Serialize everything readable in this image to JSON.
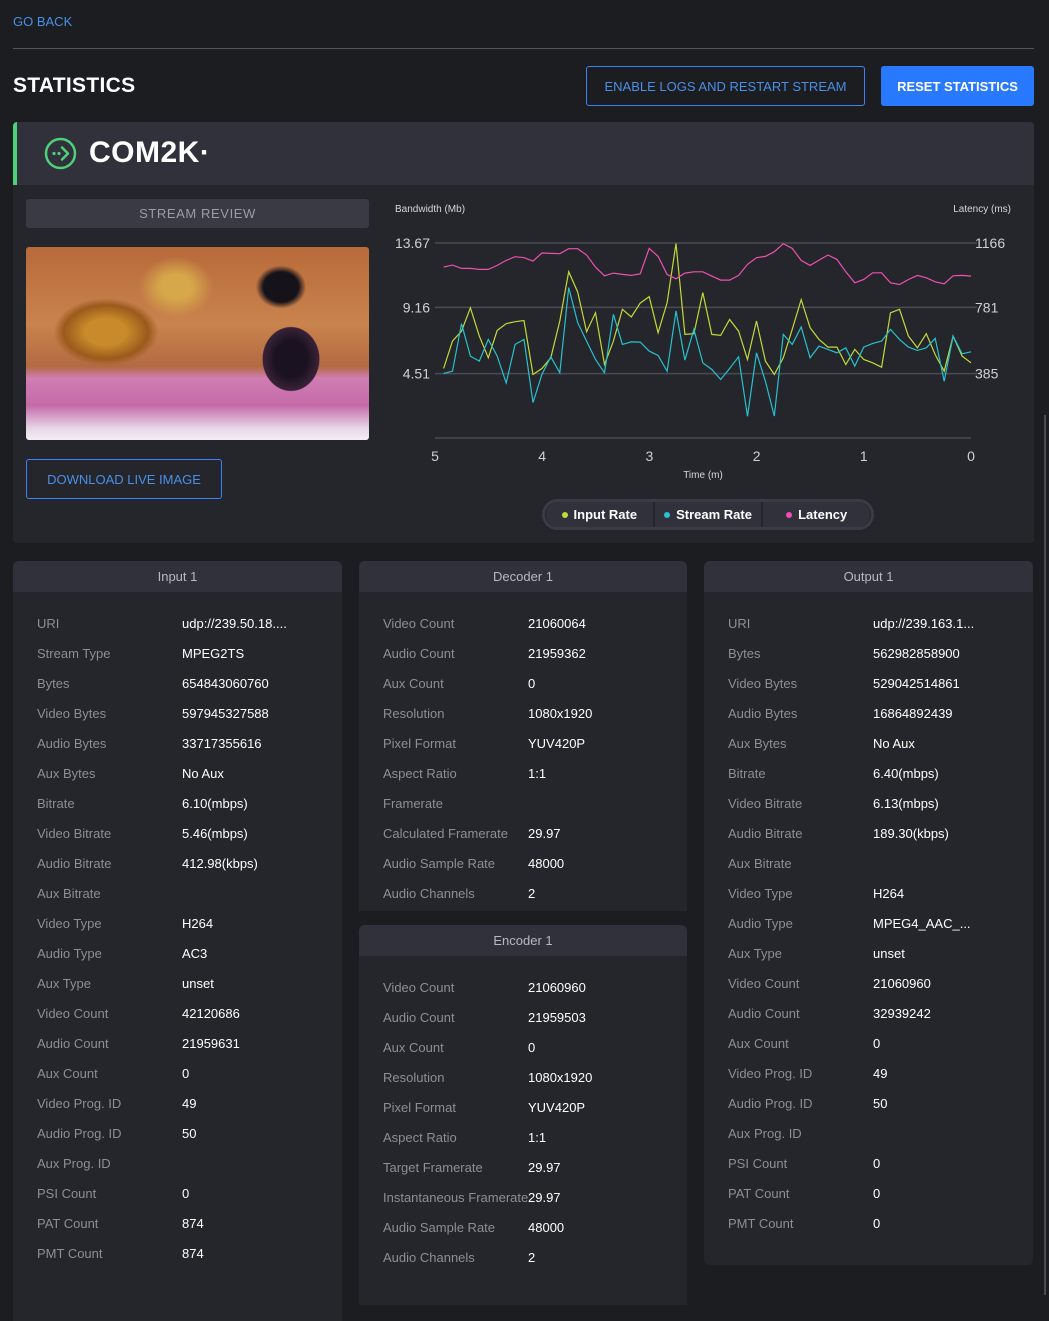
{
  "nav": {
    "go_back": "GO BACK"
  },
  "header": {
    "title": "STATISTICS",
    "enable_logs": "ENABLE LOGS AND RESTART STREAM",
    "reset": "RESET STATISTICS"
  },
  "stream": {
    "name": "COM2K·",
    "accent": "#4ed07a",
    "stream_review": "STREAM REVIEW",
    "download": "DOWNLOAD LIVE IMAGE"
  },
  "chart_data": {
    "type": "line",
    "ylabel_left": "Bandwidth (Mb)",
    "ylabel_right": "Latency (ms)",
    "xlabel": "Time (m)",
    "x_ticks": [
      "5",
      "4",
      "3",
      "2",
      "1",
      "0"
    ],
    "xlim": [
      5,
      0
    ],
    "y_left_ticks": [
      "13.67",
      "9.16",
      "4.51"
    ],
    "ylim_left": [
      0,
      13.67
    ],
    "y_right_ticks": [
      "1166",
      "781",
      "385"
    ],
    "ylim_right": [
      0,
      1166
    ],
    "grid": true,
    "legend_placement": "bottom",
    "series": [
      {
        "name": "Input Rate",
        "axis": "left",
        "color": "#c3d93a",
        "values": [
          4.87,
          6.79,
          7.49,
          9.13,
          7.14,
          5.62,
          7.54,
          8.01,
          8.15,
          8.24,
          4.45,
          4.87,
          5.62,
          8.2,
          11.66,
          10.23,
          7.45,
          8.78,
          5.15,
          6.79,
          9.02,
          8.48,
          9.46,
          9.91,
          7.38,
          9.48,
          13.63,
          7.26,
          7.31,
          10.19,
          7.26,
          7.19,
          8.31,
          7.49,
          5.5,
          8.2,
          5.39,
          4.45,
          5.62,
          7.61,
          9.7,
          7.73,
          6.91,
          6.37,
          6.37,
          5.15,
          6.21,
          5.5,
          5.27,
          4.96,
          8.78,
          9.02,
          7.14,
          6.32,
          7.31,
          5.85,
          4.68,
          7.14,
          5.74,
          5.27
        ]
      },
      {
        "name": "Stream Rate",
        "axis": "left",
        "color": "#27c1cf",
        "values": [
          4.52,
          4.68,
          8.01,
          5.74,
          5.39,
          6.91,
          5.74,
          3.86,
          6.56,
          6.91,
          2.48,
          4.45,
          5.69,
          4.57,
          10.54,
          8.08,
          6.79,
          5.5,
          4.57,
          8.67,
          6.56,
          6.74,
          6.72,
          6.09,
          5.78,
          4.68,
          8.9,
          5.46,
          7.61,
          5.27,
          4.8,
          4.1,
          4.87,
          5.69,
          1.52,
          5.97,
          3.98,
          1.54,
          7.26,
          6.56,
          7.78,
          5.62,
          6.44,
          6.21,
          5.97,
          6.32,
          5.04,
          6.37,
          6.63,
          6.79,
          7.61,
          6.91,
          6.37,
          6.14,
          6.32,
          6.98,
          3.98,
          7.14,
          5.9,
          6.04
        ]
      },
      {
        "name": "Latency",
        "axis": "right",
        "color": "#ee4fb2",
        "values": [
          1022,
          1034,
          1014,
          1014,
          1008,
          1008,
          1032,
          1062,
          1084,
          1078,
          1058,
          1106,
          1104,
          1102,
          1132,
          1132,
          1094,
          1022,
          970,
          986,
          978,
          972,
          982,
          1134,
          1086,
          978,
          952,
          986,
          994,
          994,
          968,
          944,
          944,
          972,
          1038,
          1078,
          1086,
          1114,
          1162,
          1134,
          1062,
          1032,
          1064,
          1094,
          1068,
          994,
          928,
          948,
          988,
          988,
          928,
          918,
          948,
          972,
          958,
          934,
          922,
          970,
          972,
          968
        ]
      }
    ]
  },
  "tables": {
    "input": {
      "title": "Input 1",
      "rows": [
        [
          "URI",
          "udp://239.50.18...."
        ],
        [
          "Stream Type",
          "MPEG2TS"
        ],
        [
          "Bytes",
          "654843060760"
        ],
        [
          "Video Bytes",
          "597945327588"
        ],
        [
          "Audio Bytes",
          "33717355616"
        ],
        [
          "Aux Bytes",
          "No Aux"
        ],
        [
          "Bitrate",
          "6.10(mbps)"
        ],
        [
          "Video Bitrate",
          "5.46(mbps)"
        ],
        [
          "Audio Bitrate",
          "412.98(kbps)"
        ],
        [
          "Aux Bitrate",
          ""
        ],
        [
          "Video Type",
          "H264"
        ],
        [
          "Audio Type",
          "AC3"
        ],
        [
          "Aux Type",
          "unset"
        ],
        [
          "Video Count",
          "42120686"
        ],
        [
          "Audio Count",
          "21959631"
        ],
        [
          "Aux Count",
          "0"
        ],
        [
          "Video Prog. ID",
          "49"
        ],
        [
          "Audio Prog. ID",
          "50"
        ],
        [
          "Aux Prog. ID",
          ""
        ],
        [
          "PSI Count",
          "0"
        ],
        [
          "PAT Count",
          "874"
        ],
        [
          "PMT Count",
          "874"
        ]
      ]
    },
    "decoder": {
      "title": "Decoder 1",
      "rows": [
        [
          "Video Count",
          "21060064"
        ],
        [
          "Audio Count",
          "21959362"
        ],
        [
          "Aux Count",
          "0"
        ],
        [
          "Resolution",
          "1080x1920"
        ],
        [
          "Pixel Format",
          "YUV420P"
        ],
        [
          "Aspect Ratio",
          "1:1"
        ],
        [
          "Framerate",
          ""
        ],
        [
          "Calculated Framerate",
          "29.97"
        ],
        [
          "Audio Sample Rate",
          "48000"
        ],
        [
          "Audio Channels",
          "2"
        ]
      ]
    },
    "encoder": {
      "title": "Encoder 1",
      "rows": [
        [
          "Video Count",
          "21060960"
        ],
        [
          "Audio Count",
          "21959503"
        ],
        [
          "Aux Count",
          "0"
        ],
        [
          "Resolution",
          "1080x1920"
        ],
        [
          "Pixel Format",
          "YUV420P"
        ],
        [
          "Aspect Ratio",
          "1:1"
        ],
        [
          "Target Framerate",
          "29.97"
        ],
        [
          "Instantaneous Framerate",
          "29.97"
        ],
        [
          "Audio Sample Rate",
          "48000"
        ],
        [
          "Audio Channels",
          "2"
        ]
      ]
    },
    "output": {
      "title": "Output 1",
      "rows": [
        [
          "URI",
          "udp://239.163.1..."
        ],
        [
          "Bytes",
          "562982858900"
        ],
        [
          "Video Bytes",
          "529042514861"
        ],
        [
          "Audio Bytes",
          "16864892439"
        ],
        [
          "Aux Bytes",
          "No Aux"
        ],
        [
          "Bitrate",
          "6.40(mbps)"
        ],
        [
          "Video Bitrate",
          "6.13(mbps)"
        ],
        [
          "Audio Bitrate",
          "189.30(kbps)"
        ],
        [
          "Aux Bitrate",
          ""
        ],
        [
          "Video Type",
          "H264"
        ],
        [
          "Audio Type",
          "MPEG4_AAC_..."
        ],
        [
          "Aux Type",
          "unset"
        ],
        [
          "Video Count",
          "21060960"
        ],
        [
          "Audio Count",
          "32939242"
        ],
        [
          "Aux Count",
          "0"
        ],
        [
          "Video Prog. ID",
          "49"
        ],
        [
          "Audio Prog. ID",
          "50"
        ],
        [
          "Aux Prog. ID",
          ""
        ],
        [
          "PSI Count",
          "0"
        ],
        [
          "PAT Count",
          "0"
        ],
        [
          "PMT Count",
          "0"
        ]
      ]
    }
  }
}
